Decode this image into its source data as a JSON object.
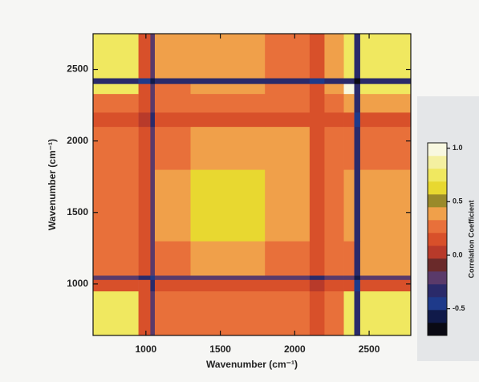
{
  "chart_data": {
    "type": "heatmap",
    "x_label": "Wavenumber (cm⁻¹)",
    "y_label": "Wavenumber (cm⁻¹)",
    "x_edges": [
      645,
      950,
      1030,
      1060,
      1300,
      1800,
      2100,
      2200,
      2330,
      2400,
      2440,
      2780
    ],
    "y_edges": [
      640,
      950,
      1030,
      1060,
      1300,
      1800,
      2100,
      2200,
      2330,
      2400,
      2440,
      2750
    ],
    "xlim": [
      645,
      2780
    ],
    "ylim": [
      640,
      2750
    ],
    "xticks": [
      1000,
      1500,
      2000,
      2500
    ],
    "yticks": [
      1000,
      1500,
      2000,
      2500
    ],
    "z": [
      [
        0.75,
        0.2,
        -0.2,
        0.3,
        0.3,
        0.25,
        0.1,
        0.3,
        0.8,
        -0.3,
        0.7
      ],
      [
        0.2,
        0.15,
        -0.3,
        0.2,
        0.2,
        0.15,
        0.05,
        0.15,
        0.2,
        -0.4,
        0.2
      ],
      [
        -0.2,
        -0.3,
        -0.5,
        -0.25,
        -0.2,
        -0.25,
        -0.3,
        -0.25,
        -0.2,
        -0.6,
        -0.2
      ],
      [
        0.3,
        0.2,
        -0.25,
        0.3,
        0.35,
        0.3,
        0.1,
        0.25,
        0.3,
        -0.3,
        0.35
      ],
      [
        0.3,
        0.2,
        -0.2,
        0.35,
        0.6,
        0.4,
        0.15,
        0.3,
        0.35,
        -0.3,
        0.35
      ],
      [
        0.25,
        0.15,
        -0.25,
        0.3,
        0.4,
        0.35,
        0.1,
        0.25,
        0.3,
        -0.35,
        0.3
      ],
      [
        0.1,
        0.05,
        -0.3,
        0.1,
        0.15,
        0.1,
        0.1,
        0.1,
        0.1,
        -0.4,
        0.1
      ],
      [
        0.3,
        0.15,
        -0.25,
        0.25,
        0.3,
        0.25,
        0.1,
        0.3,
        0.4,
        -0.35,
        0.4
      ],
      [
        0.8,
        0.2,
        -0.2,
        0.3,
        0.35,
        0.3,
        0.1,
        0.4,
        0.95,
        -0.3,
        0.75
      ],
      [
        -0.3,
        -0.4,
        -0.6,
        -0.3,
        -0.3,
        -0.35,
        -0.4,
        -0.35,
        -0.3,
        -0.7,
        -0.3
      ],
      [
        0.7,
        0.2,
        -0.2,
        0.35,
        0.35,
        0.3,
        0.1,
        0.4,
        0.75,
        -0.3,
        0.8
      ]
    ],
    "colorbar": {
      "label": "Correlation Coefficient",
      "levels": [
        -0.75,
        -0.63,
        -0.51,
        -0.39,
        -0.27,
        -0.15,
        -0.03,
        0.09,
        0.21,
        0.33,
        0.45,
        0.57,
        0.69,
        0.81,
        0.93,
        1.05
      ],
      "colors": [
        "#0a0a14",
        "#101a4a",
        "#1e3a8a",
        "#2a2a6a",
        "#5a3a6a",
        "#6a2a2a",
        "#b83a2a",
        "#d8502a",
        "#e8703a",
        "#f0a04a",
        "#9a8a2a",
        "#e8d830",
        "#f0e860",
        "#f4f0a0",
        "#f8f8e0"
      ],
      "lim": [
        -0.75,
        1.05
      ],
      "ticks": [
        {
          "value": 1.0,
          "label": "1.0"
        },
        0.5,
        {
          "value": 0.0,
          "label": "0.0"
        },
        -0.5
      ]
    }
  }
}
